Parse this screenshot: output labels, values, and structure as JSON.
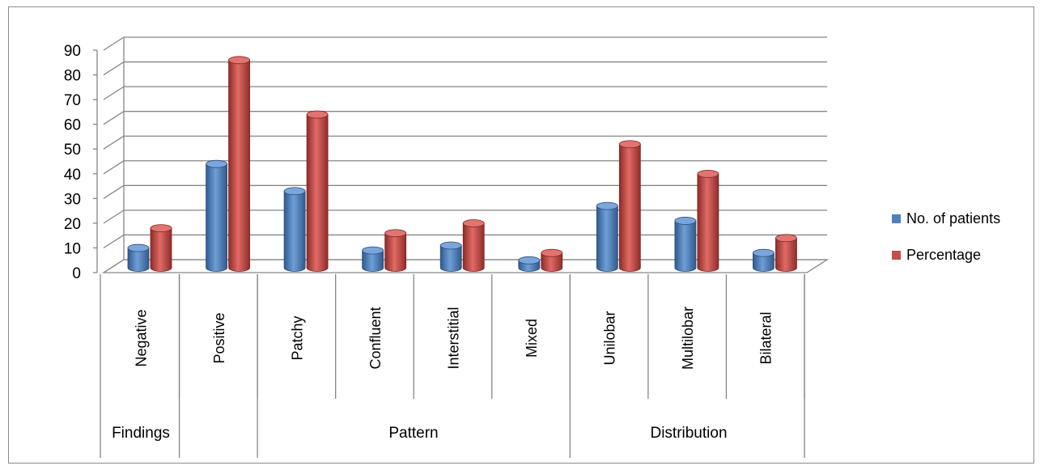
{
  "chart_data": {
    "type": "bar",
    "title": "",
    "xlabel": "",
    "ylabel": "",
    "ylim": [
      0,
      90
    ],
    "y_ticks": [
      0,
      10,
      20,
      30,
      40,
      50,
      60,
      70,
      80,
      90
    ],
    "grid": true,
    "legend_position": "right",
    "categories": [
      "Negative",
      "Positive",
      "Patchy",
      "Confluent",
      "Interstitial",
      "Mixed",
      "Unilobar",
      "Multilobar",
      "Bilateral"
    ],
    "groups": [
      {
        "label": "Findings",
        "categories": [
          "Negative",
          "Positive"
        ]
      },
      {
        "label": "Pattern",
        "categories": [
          "Patchy",
          "Confluent",
          "Interstitial",
          "Mixed"
        ]
      },
      {
        "label": "Distribution",
        "categories": [
          "Unilobar",
          "Multilobar",
          "Bilateral"
        ]
      }
    ],
    "series": [
      {
        "name": "No. of patients",
        "color": "#4f81bd",
        "values": [
          8,
          42,
          31,
          7,
          9,
          3,
          25,
          19,
          6
        ]
      },
      {
        "name": "Percentage",
        "color": "#c0504d",
        "values": [
          16,
          84,
          62,
          14,
          18,
          6,
          50,
          38,
          12
        ]
      }
    ]
  }
}
